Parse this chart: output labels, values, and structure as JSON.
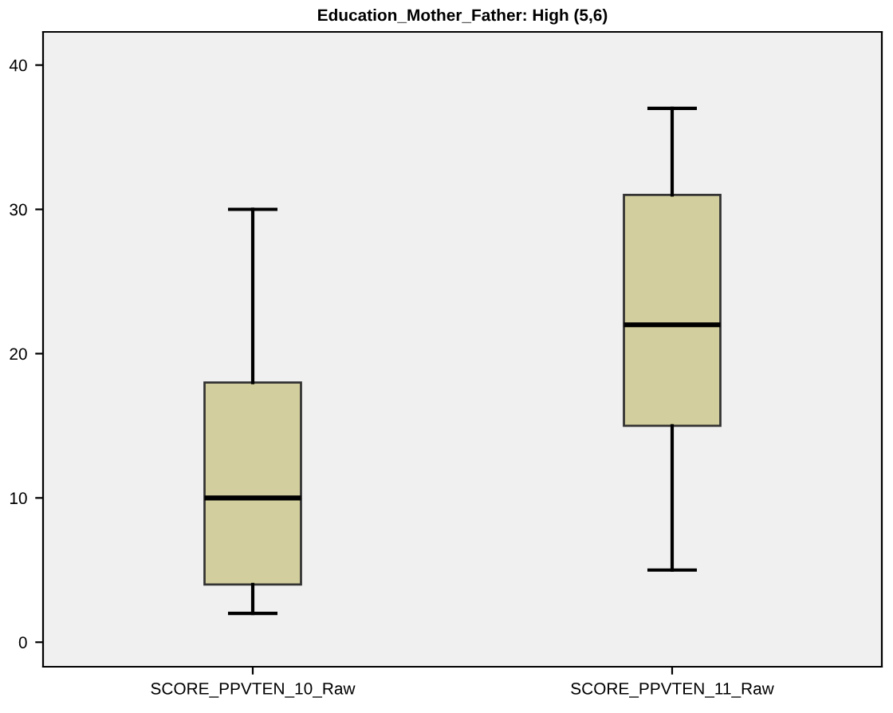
{
  "chart_data": {
    "type": "box",
    "title": "Education_Mother_Father: High (5,6)",
    "categories": [
      "SCORE_PPVTEN_10_Raw",
      "SCORE_PPVTEN_11_Raw"
    ],
    "color": "#d3ce9d",
    "boxes": [
      {
        "low": 2,
        "q1": 4,
        "median": 10,
        "q3": 18,
        "high": 30
      },
      {
        "low": 5,
        "q1": 15,
        "median": 22,
        "q3": 31,
        "high": 37
      }
    ],
    "ylim": [
      -1.7,
      42.3
    ],
    "yticks": [
      0,
      10,
      20,
      30,
      40
    ],
    "grid": false
  }
}
